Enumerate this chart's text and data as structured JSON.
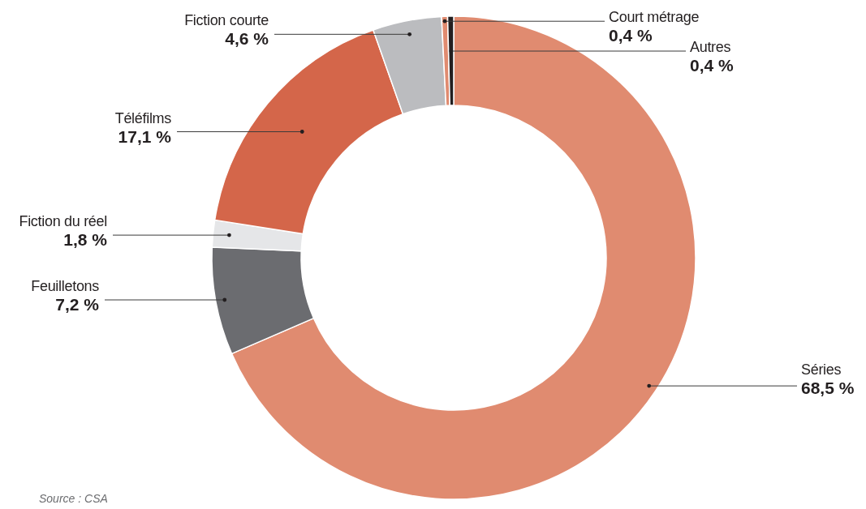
{
  "chart_data": {
    "type": "donut",
    "categories": [
      "Séries",
      "Feuilletons",
      "Fiction du réel",
      "Téléfilms",
      "Fiction courte",
      "Court métrage",
      "Autres"
    ],
    "values": [
      68.5,
      7.2,
      1.8,
      17.1,
      4.6,
      0.4,
      0.4
    ],
    "colors": [
      "#e08b70",
      "#6b6c70",
      "#e5e6e8",
      "#d4664a",
      "#bbbcbf",
      "#e08b70",
      "#231f20"
    ],
    "value_labels": [
      "68,5 %",
      "7,2 %",
      "1,8 %",
      "17,1 %",
      "4,6 %",
      "0,4 %",
      "0,4 %"
    ],
    "annotations": [
      "Source : CSA"
    ]
  }
}
